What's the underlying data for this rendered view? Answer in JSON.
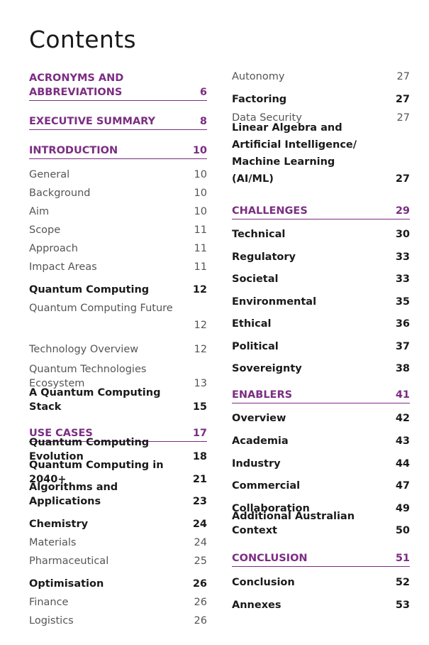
{
  "page_title": "Contents",
  "left_column": [
    {
      "style": "section",
      "label": "ACRONYMS AND ABBREVIATIONS",
      "page": "6"
    },
    {
      "style": "section",
      "label": "EXECUTIVE SUMMARY",
      "page": "8"
    },
    {
      "style": "section",
      "label": "INTRODUCTION",
      "page": "10"
    },
    {
      "style": "normal",
      "label": "General",
      "page": "10"
    },
    {
      "style": "normal",
      "label": "Background",
      "page": "10"
    },
    {
      "style": "normal",
      "label": "Aim",
      "page": "10"
    },
    {
      "style": "normal",
      "label": "Scope",
      "page": "11"
    },
    {
      "style": "normal",
      "label": "Approach",
      "page": "11"
    },
    {
      "style": "normal",
      "label": "Impact Areas",
      "page": "11"
    },
    {
      "style": "bold",
      "label": "Quantum Computing",
      "page": "12"
    },
    {
      "style": "normal",
      "label": "Quantum Computing Future",
      "page": "12"
    },
    {
      "style": "normal",
      "label": "Technology Overview",
      "page": "12"
    },
    {
      "style": "normal",
      "label": "Quantum Technologies Ecosystem",
      "page": "13"
    },
    {
      "style": "bold",
      "label": "A Quantum Computing Stack",
      "page": "15"
    },
    {
      "style": "section",
      "label": "USE CASES",
      "page": "17"
    },
    {
      "style": "bold",
      "label": "Quantum Computing Evolution",
      "page": "18"
    },
    {
      "style": "bold",
      "label": "Quantum Computing in 2040+",
      "page": "21"
    },
    {
      "style": "bold",
      "label": "Algorithms and Applications",
      "page": "23"
    },
    {
      "style": "bold",
      "label": "Chemistry",
      "page": "24"
    },
    {
      "style": "normal",
      "label": "Materials",
      "page": "24"
    },
    {
      "style": "normal",
      "label": "Pharmaceutical",
      "page": "25"
    },
    {
      "style": "bold",
      "label": "Optimisation",
      "page": "26"
    },
    {
      "style": "normal",
      "label": "Finance",
      "page": "26"
    },
    {
      "style": "normal",
      "label": "Logistics",
      "page": "26"
    }
  ],
  "right_column": [
    {
      "style": "normal",
      "label": "Autonomy",
      "page": "27"
    },
    {
      "style": "bold",
      "label": "Factoring",
      "page": "27"
    },
    {
      "style": "normal",
      "label": "Data Security",
      "page": "27"
    },
    {
      "style": "bold",
      "label": "Linear Algebra and Artificial Intelligence/ Machine Learning (AI/ML)",
      "page": "27"
    },
    {
      "style": "section",
      "label": "CHALLENGES",
      "page": "29"
    },
    {
      "style": "bold",
      "label": "Technical",
      "page": "30"
    },
    {
      "style": "bold",
      "label": "Regulatory",
      "page": "33"
    },
    {
      "style": "bold",
      "label": "Societal",
      "page": "33"
    },
    {
      "style": "bold",
      "label": "Environmental",
      "page": "35"
    },
    {
      "style": "bold",
      "label": "Ethical",
      "page": "36"
    },
    {
      "style": "bold",
      "label": "Political",
      "page": "37"
    },
    {
      "style": "bold",
      "label": "Sovereignty",
      "page": "38"
    },
    {
      "style": "section",
      "label": "ENABLERS",
      "page": "41"
    },
    {
      "style": "bold",
      "label": "Overview",
      "page": "42"
    },
    {
      "style": "bold",
      "label": "Academia",
      "page": "43"
    },
    {
      "style": "bold",
      "label": "Industry",
      "page": "44"
    },
    {
      "style": "bold",
      "label": "Commercial",
      "page": "47"
    },
    {
      "style": "bold",
      "label": "Collaboration",
      "page": "49"
    },
    {
      "style": "bold",
      "label": "Additional Australian Context",
      "page": "50"
    },
    {
      "style": "section",
      "label": "CONCLUSION",
      "page": "51"
    },
    {
      "style": "bold",
      "label": "Conclusion",
      "page": "52"
    },
    {
      "style": "bold",
      "label": "Annexes",
      "page": "53"
    }
  ]
}
